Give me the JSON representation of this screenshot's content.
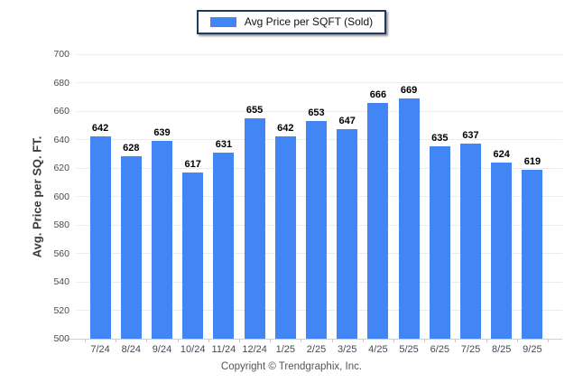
{
  "legend": {
    "label": "Avg Price per SQFT (Sold)"
  },
  "footer": {
    "copyright": "Copyright © Trendgraphix, Inc."
  },
  "colors": {
    "bar": "#4285F4",
    "legend_border": "#1b3a66",
    "gridline": "#ececec",
    "axis_line": "#cfcfcf"
  },
  "chart_data": {
    "type": "bar",
    "title": "",
    "xlabel": "",
    "ylabel": "Avg. Price per SQ. FT.",
    "categories": [
      "7/24",
      "8/24",
      "9/24",
      "10/24",
      "11/24",
      "12/24",
      "1/25",
      "2/25",
      "3/25",
      "4/25",
      "5/25",
      "6/25",
      "7/25",
      "8/25",
      "9/25"
    ],
    "values": [
      642,
      628,
      639,
      617,
      631,
      655,
      642,
      653,
      647,
      666,
      669,
      635,
      637,
      624,
      619
    ],
    "series": [
      {
        "name": "Avg Price per SQFT (Sold)",
        "values": [
          642,
          628,
          639,
          617,
          631,
          655,
          642,
          653,
          647,
          666,
          669,
          635,
          637,
          624,
          619
        ]
      }
    ],
    "ylim": [
      500,
      700
    ],
    "ytick_step": 20,
    "grid": true,
    "legend_position": "top-center"
  }
}
